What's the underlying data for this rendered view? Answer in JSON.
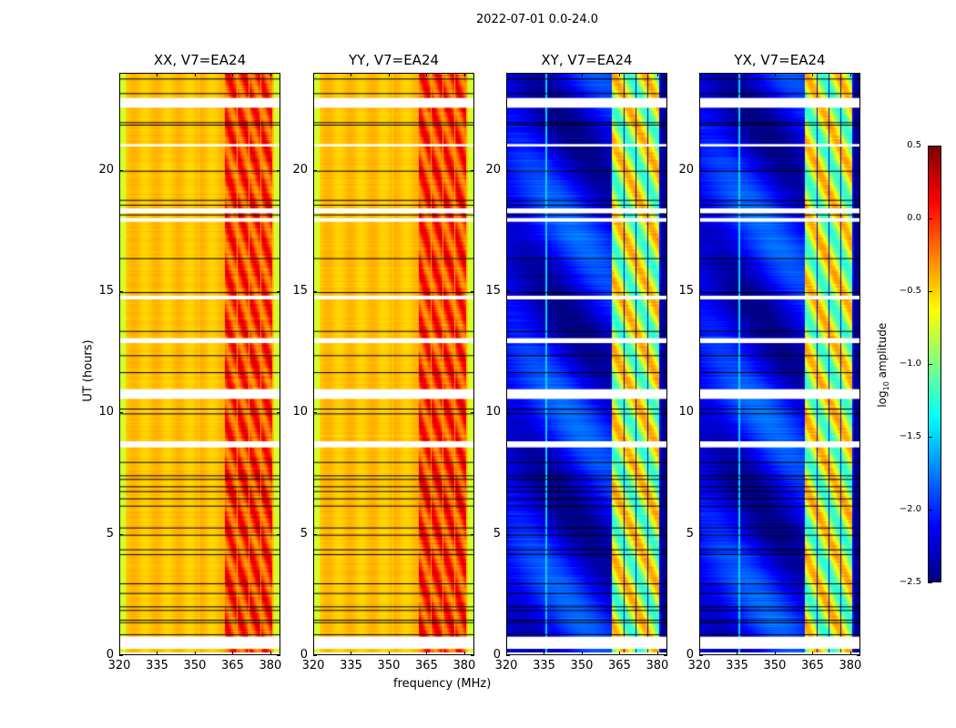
{
  "figure": {
    "suptitle": "2022-07-01 0.0-24.0",
    "xlabel": "frequency (MHz)",
    "ylabel": "UT (hours)"
  },
  "chart_data": {
    "type": "heatmap",
    "title": "2022-07-01 0.0-24.0",
    "xlabel": "frequency (MHz)",
    "ylabel": "UT (hours)",
    "xlim": [
      320,
      384
    ],
    "ylim": [
      0,
      24
    ],
    "xticks": [
      "320",
      "335",
      "350",
      "365",
      "380"
    ],
    "xtick_values": [
      320,
      335,
      350,
      365,
      380
    ],
    "yticks": [
      "0",
      "5",
      "10",
      "15",
      "20"
    ],
    "ytick_values": [
      0,
      5,
      10,
      15,
      20
    ],
    "panels": [
      {
        "id": "xx",
        "title": "XX, V7=EA24",
        "level": "high"
      },
      {
        "id": "yy",
        "title": "YY, V7=EA24",
        "level": "high"
      },
      {
        "id": "xy",
        "title": "XY, V7=EA24",
        "level": "low"
      },
      {
        "id": "yx",
        "title": "YX, V7=EA24",
        "level": "low"
      }
    ],
    "rfi_band_mhz": [
      362,
      381
    ],
    "colorbar": {
      "label": "log10 amplitude",
      "colormap": "jet",
      "range": [
        -2.5,
        0.5
      ],
      "ticks": [
        "0.5",
        "0.0",
        "−0.5",
        "−1.0",
        "−1.5",
        "−2.0",
        "−2.5"
      ],
      "tick_values": [
        0.5,
        0.0,
        -0.5,
        -1.0,
        -1.5,
        -2.0,
        -2.5
      ]
    },
    "data_gaps_hours": [
      [
        0.0,
        0.15
      ],
      [
        0.3,
        0.8
      ],
      [
        8.6,
        8.85
      ],
      [
        10.6,
        11.0
      ],
      [
        12.9,
        13.1
      ],
      [
        14.7,
        14.85
      ],
      [
        17.9,
        18.05
      ],
      [
        18.25,
        18.45
      ],
      [
        21.0,
        21.1
      ],
      [
        22.6,
        23.0
      ]
    ],
    "flag_lines_hours": [
      0.9,
      1.4,
      1.5,
      1.9,
      2.05,
      2.6,
      3.0,
      4.2,
      4.4,
      5.0,
      5.3,
      6.2,
      6.5,
      6.8,
      7.0,
      7.3,
      7.45,
      8.0,
      10.0,
      10.2,
      11.7,
      12.4,
      13.4,
      15.0,
      16.4,
      18.2,
      18.6,
      18.8,
      20.0,
      21.9,
      22.0,
      23.2,
      23.8
    ]
  }
}
